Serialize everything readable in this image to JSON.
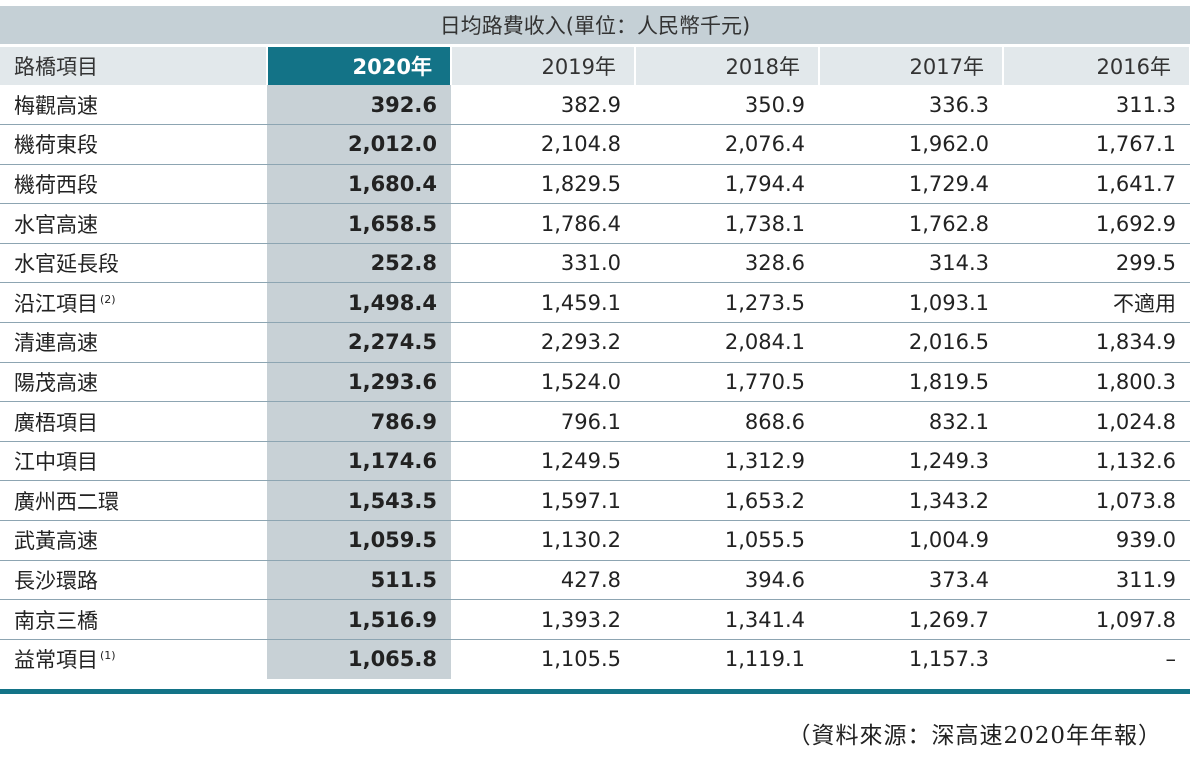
{
  "caption": "日均路費收入(單位：人民幣千元)",
  "header": {
    "name_label": "路橋項目",
    "years": [
      "2020年",
      "2019年",
      "2018年",
      "2017年",
      "2016年"
    ]
  },
  "rows": [
    {
      "name": "梅觀高速",
      "note": "",
      "values": [
        "392.6",
        "382.9",
        "350.9",
        "336.3",
        "311.3"
      ]
    },
    {
      "name": "機荷東段",
      "note": "",
      "values": [
        "2,012.0",
        "2,104.8",
        "2,076.4",
        "1,962.0",
        "1,767.1"
      ]
    },
    {
      "name": "機荷西段",
      "note": "",
      "values": [
        "1,680.4",
        "1,829.5",
        "1,794.4",
        "1,729.4",
        "1,641.7"
      ]
    },
    {
      "name": "水官高速",
      "note": "",
      "values": [
        "1,658.5",
        "1,786.4",
        "1,738.1",
        "1,762.8",
        "1,692.9"
      ]
    },
    {
      "name": "水官延長段",
      "note": "",
      "values": [
        "252.8",
        "331.0",
        "328.6",
        "314.3",
        "299.5"
      ]
    },
    {
      "name": "沿江項目",
      "note": "(2)",
      "values": [
        "1,498.4",
        "1,459.1",
        "1,273.5",
        "1,093.1",
        "不適用"
      ]
    },
    {
      "name": "清連高速",
      "note": "",
      "values": [
        "2,274.5",
        "2,293.2",
        "2,084.1",
        "2,016.5",
        "1,834.9"
      ]
    },
    {
      "name": "陽茂高速",
      "note": "",
      "values": [
        "1,293.6",
        "1,524.0",
        "1,770.5",
        "1,819.5",
        "1,800.3"
      ]
    },
    {
      "name": "廣梧項目",
      "note": "",
      "values": [
        "786.9",
        "796.1",
        "868.6",
        "832.1",
        "1,024.8"
      ]
    },
    {
      "name": "江中項目",
      "note": "",
      "values": [
        "1,174.6",
        "1,249.5",
        "1,312.9",
        "1,249.3",
        "1,132.6"
      ]
    },
    {
      "name": "廣州西二環",
      "note": "",
      "values": [
        "1,543.5",
        "1,597.1",
        "1,653.2",
        "1,343.2",
        "1,073.8"
      ]
    },
    {
      "name": "武黃高速",
      "note": "",
      "values": [
        "1,059.5",
        "1,130.2",
        "1,055.5",
        "1,004.9",
        "939.0"
      ]
    },
    {
      "name": "長沙環路",
      "note": "",
      "values": [
        "511.5",
        "427.8",
        "394.6",
        "373.4",
        "311.9"
      ]
    },
    {
      "name": "南京三橋",
      "note": "",
      "values": [
        "1,516.9",
        "1,393.2",
        "1,341.4",
        "1,269.7",
        "1,097.8"
      ]
    },
    {
      "name": "益常項目",
      "note": "(1)",
      "values": [
        "1,065.8",
        "1,105.5",
        "1,119.1",
        "1,157.3",
        "–"
      ]
    }
  ],
  "source_note": "（資料來源：深高速2020年年報）",
  "colors": {
    "accent": "#137387",
    "caption_bg": "#c5d0d6",
    "header_bg": "#e2e8eb",
    "current_col_bg": "#c8d1d6",
    "row_divider": "#8da5b2"
  }
}
